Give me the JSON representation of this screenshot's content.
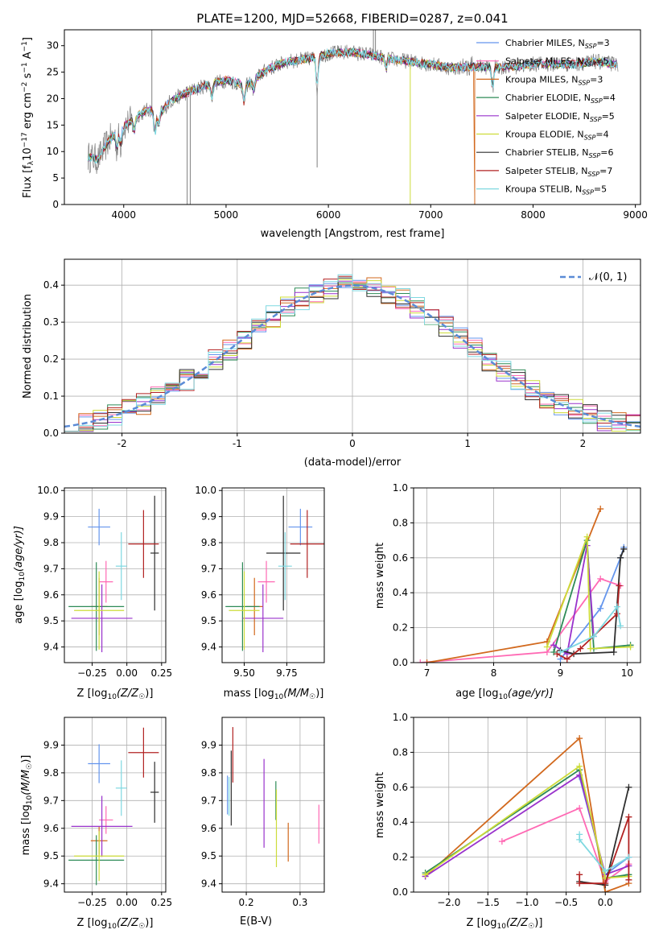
{
  "chart_data": [
    {
      "id": "spectrum",
      "type": "line",
      "title": "PLATE=1200, MJD=52668, FIBERID=0287, z=0.041",
      "xlabel": "wavelength [Angstrom, rest frame]",
      "ylabel": "Flux [f",
      "ylabel_sub": "λ",
      "ylabel_rest": "10",
      "ylabel_exp": "−17",
      "ylabel_tail": " erg cm",
      "ylabel_exp2": "−2",
      "ylabel_tail2": " s",
      "ylabel_exp3": "−1",
      "ylabel_tail3": " A",
      "ylabel_exp4": "−1",
      "ylabel_end": "]",
      "xlim": [
        3420,
        9050
      ],
      "ylim": [
        0,
        33
      ],
      "xticks": [
        4000,
        5000,
        6000,
        7000,
        8000,
        9000
      ],
      "yticks": [
        0,
        5,
        10,
        15,
        20,
        25,
        30
      ],
      "legend_loc": "upper-right",
      "series": [
        {
          "name": "Chabrier MILES, N",
          "sub": "SSP",
          "val": "=3",
          "color": "#6495ed"
        },
        {
          "name": "Salpeter MILES, N",
          "sub": "SSP",
          "val": "=5",
          "color": "#ff69b4"
        },
        {
          "name": "Kroupa MILES, N",
          "sub": "SSP",
          "val": "=3",
          "color": "#d2691e"
        },
        {
          "name": "Chabrier ELODIE, N",
          "sub": "SSP",
          "val": "=4",
          "color": "#2e8b57"
        },
        {
          "name": "Salpeter ELODIE, N",
          "sub": "SSP",
          "val": "=5",
          "color": "#9932cc"
        },
        {
          "name": "Kroupa ELODIE, N",
          "sub": "SSP",
          "val": "=4",
          "color": "#cddc39"
        },
        {
          "name": "Chabrier STELIB, N",
          "sub": "SSP",
          "val": "=6",
          "color": "#2f2f2f"
        },
        {
          "name": "Salpeter STELIB, N",
          "sub": "SSP",
          "val": "=7",
          "color": "#b22222"
        },
        {
          "name": "Kroupa STELIB, N",
          "sub": "SSP",
          "val": "=5",
          "color": "#7fd8e0"
        }
      ],
      "continuum": [
        [
          3650,
          9
        ],
        [
          3750,
          8.5
        ],
        [
          3850,
          12
        ],
        [
          3950,
          14
        ],
        [
          4050,
          15.5
        ],
        [
          4150,
          17
        ],
        [
          4250,
          18
        ],
        [
          4350,
          17
        ],
        [
          4450,
          19.5
        ],
        [
          4600,
          21
        ],
        [
          4800,
          22.5
        ],
        [
          5000,
          23.5
        ],
        [
          5200,
          22.5
        ],
        [
          5400,
          25.5
        ],
        [
          5600,
          27
        ],
        [
          5800,
          27.5
        ],
        [
          6000,
          28.5
        ],
        [
          6200,
          28.8
        ],
        [
          6400,
          28.3
        ],
        [
          6600,
          27.5
        ],
        [
          6800,
          27
        ],
        [
          7000,
          26.5
        ],
        [
          7200,
          25.8
        ],
        [
          7400,
          26
        ],
        [
          7600,
          26
        ],
        [
          7800,
          26
        ],
        [
          8000,
          26.5
        ],
        [
          8200,
          26.5
        ],
        [
          8400,
          26.5
        ],
        [
          8600,
          27
        ],
        [
          8800,
          26.5
        ]
      ]
    },
    {
      "id": "residuals",
      "type": "histogram",
      "xlabel": "(data-model)/error",
      "ylabel": "Normed distribution",
      "xlim": [
        -2.5,
        2.5
      ],
      "ylim": [
        0,
        0.47
      ],
      "xticks": [
        -2,
        -1,
        0,
        1,
        2
      ],
      "yticks": [
        0.0,
        0.1,
        0.2,
        0.3,
        0.4
      ],
      "grid": true,
      "legend_loc": "upper-right",
      "legend_label": "𝒩(0, 1)",
      "gauss_color": "#5b8bd6"
    },
    {
      "id": "age-vs-z",
      "type": "errorbar",
      "xlabel": "Z [log",
      "xlabel_sub": "10",
      "xlabel_rest": "(Z/Z",
      "xlabel_sub2": "☉",
      "xlabel_end": ")]",
      "ylabel": "age  [log",
      "ylabel_sub": "10",
      "ylabel_rest": "(age/yr)]",
      "xlim": [
        -0.45,
        0.28
      ],
      "ylim": [
        9.34,
        10.01
      ],
      "xticks": [
        -0.25,
        0.0,
        0.25
      ],
      "xticklabels": [
        "−0.25",
        "0.00",
        "0.25"
      ],
      "yticks": [
        9.4,
        9.5,
        9.6,
        9.7,
        9.8,
        9.9,
        10.0
      ],
      "points": [
        {
          "x": -0.2,
          "xerr": 0.08,
          "y": 9.86,
          "yerr": 0.07,
          "color": "#6495ed"
        },
        {
          "x": -0.15,
          "xerr": 0.05,
          "y": 9.65,
          "yerr": 0.08,
          "color": "#ff69b4"
        },
        {
          "x": -0.2,
          "xerr": 0.06,
          "y": 9.555,
          "yerr": 0.11,
          "color": "#d2691e"
        },
        {
          "x": -0.22,
          "xerr": 0.2,
          "y": 9.555,
          "yerr": 0.17,
          "color": "#2e8b57"
        },
        {
          "x": -0.18,
          "xerr": 0.22,
          "y": 9.51,
          "yerr": 0.13,
          "color": "#9932cc"
        },
        {
          "x": -0.2,
          "xerr": 0.18,
          "y": 9.54,
          "yerr": 0.15,
          "color": "#cddc39"
        },
        {
          "x": 0.2,
          "xerr": 0.03,
          "y": 9.76,
          "yerr": 0.22,
          "color": "#2f2f2f"
        },
        {
          "x": 0.12,
          "xerr": 0.11,
          "y": 9.795,
          "yerr": 0.13,
          "color": "#b22222"
        },
        {
          "x": -0.04,
          "xerr": 0.04,
          "y": 9.71,
          "yerr": 0.13,
          "color": "#7fd8e0"
        }
      ]
    },
    {
      "id": "age-vs-mass",
      "type": "errorbar",
      "xlabel": "mass [log",
      "xlabel_sub": "10",
      "xlabel_rest": "(M/M",
      "xlabel_sub2": "☉",
      "xlabel_end": ")]",
      "xlim": [
        9.37,
        9.97
      ],
      "ylim": [
        9.34,
        10.01
      ],
      "xticks": [
        9.5,
        9.75
      ],
      "xticklabels": [
        "9.50",
        "9.75"
      ],
      "yticks": [
        9.4,
        9.5,
        9.6,
        9.7,
        9.8,
        9.9,
        10.0
      ],
      "points": [
        {
          "x": 9.83,
          "xerr": 0.07,
          "y": 9.86,
          "yerr": 0.07,
          "color": "#6495ed"
        },
        {
          "x": 9.63,
          "xerr": 0.05,
          "y": 9.65,
          "yerr": 0.08,
          "color": "#ff69b4"
        },
        {
          "x": 9.56,
          "xerr": 0.05,
          "y": 9.555,
          "yerr": 0.11,
          "color": "#d2691e"
        },
        {
          "x": 9.49,
          "xerr": 0.1,
          "y": 9.555,
          "yerr": 0.17,
          "color": "#2e8b57"
        },
        {
          "x": 9.61,
          "xerr": 0.12,
          "y": 9.51,
          "yerr": 0.13,
          "color": "#9932cc"
        },
        {
          "x": 9.5,
          "xerr": 0.09,
          "y": 9.54,
          "yerr": 0.15,
          "color": "#cddc39"
        },
        {
          "x": 9.73,
          "xerr": 0.1,
          "y": 9.76,
          "yerr": 0.22,
          "color": "#2f2f2f"
        },
        {
          "x": 9.87,
          "xerr": 0.1,
          "y": 9.795,
          "yerr": 0.13,
          "color": "#b22222"
        },
        {
          "x": 9.74,
          "xerr": 0.04,
          "y": 9.71,
          "yerr": 0.13,
          "color": "#7fd8e0"
        }
      ]
    },
    {
      "id": "mass-weight-vs-age",
      "type": "line",
      "xlabel": "age  [log",
      "xlabel_sub": "10",
      "xlabel_rest": "(age/yr)]",
      "ylabel": "mass weight",
      "xlim": [
        6.8,
        10.2
      ],
      "ylim": [
        0,
        1.0
      ],
      "xticks": [
        7,
        8,
        9,
        10
      ],
      "yticks": [
        0.0,
        0.2,
        0.4,
        0.6,
        0.8,
        1.0
      ],
      "series": [
        {
          "color": "#6495ed",
          "points": [
            [
              9.0,
              0.02
            ],
            [
              9.6,
              0.31
            ],
            [
              9.9,
              0.6
            ],
            [
              9.95,
              0.66
            ]
          ]
        },
        {
          "color": "#ff69b4",
          "points": [
            [
              6.9,
              0.0
            ],
            [
              8.8,
              0.06
            ],
            [
              9.6,
              0.48
            ],
            [
              9.9,
              0.44
            ]
          ]
        },
        {
          "color": "#d2691e",
          "points": [
            [
              7.0,
              0.0
            ],
            [
              8.8,
              0.12
            ],
            [
              9.6,
              0.88
            ]
          ]
        },
        {
          "color": "#2e8b57",
          "points": [
            [
              8.9,
              0.06
            ],
            [
              9.4,
              0.7
            ],
            [
              9.5,
              0.08
            ],
            [
              10.05,
              0.1
            ]
          ]
        },
        {
          "color": "#9932cc",
          "points": [
            [
              8.9,
              0.1
            ],
            [
              9.1,
              0.05
            ],
            [
              9.4,
              0.67
            ],
            [
              9.5,
              0.15
            ]
          ]
        },
        {
          "color": "#cddc39",
          "points": [
            [
              8.8,
              0.09
            ],
            [
              9.4,
              0.72
            ],
            [
              9.45,
              0.08
            ],
            [
              10.05,
              0.09
            ]
          ]
        },
        {
          "color": "#2f2f2f",
          "points": [
            [
              9.0,
              0.07
            ],
            [
              9.2,
              0.05
            ],
            [
              9.8,
              0.06
            ],
            [
              9.9,
              0.6
            ],
            [
              9.95,
              0.65
            ]
          ]
        },
        {
          "color": "#b22222",
          "points": [
            [
              8.95,
              0.05
            ],
            [
              9.1,
              0.02
            ],
            [
              9.3,
              0.08
            ],
            [
              9.85,
              0.28
            ],
            [
              9.88,
              0.44
            ]
          ]
        },
        {
          "color": "#7fd8e0",
          "points": [
            [
              9.0,
              0.06
            ],
            [
              9.5,
              0.15
            ],
            [
              9.85,
              0.32
            ],
            [
              9.9,
              0.21
            ]
          ]
        }
      ]
    },
    {
      "id": "mass-vs-z",
      "type": "errorbar",
      "xlabel": "Z [log",
      "xlabel_sub": "10",
      "xlabel_rest": "(Z/Z",
      "xlabel_sub2": "☉",
      "xlabel_end": ")]",
      "ylabel": "mass [log",
      "ylabel_sub": "10",
      "ylabel_rest": "(M/M",
      "ylabel_sub2": "☉",
      "ylabel_end": ")]",
      "xlim": [
        -0.45,
        0.28
      ],
      "ylim": [
        9.37,
        10.0
      ],
      "xticks": [
        -0.25,
        0.0,
        0.25
      ],
      "xticklabels": [
        "−0.25",
        "0.00",
        "0.25"
      ],
      "yticks": [
        9.4,
        9.5,
        9.6,
        9.7,
        9.8,
        9.9
      ],
      "points": [
        {
          "x": -0.2,
          "xerr": 0.08,
          "y": 9.833,
          "yerr": 0.07,
          "color": "#6495ed"
        },
        {
          "x": -0.15,
          "xerr": 0.05,
          "y": 9.63,
          "yerr": 0.05,
          "color": "#ff69b4"
        },
        {
          "x": -0.2,
          "xerr": 0.06,
          "y": 9.555,
          "yerr": 0.05,
          "color": "#d2691e"
        },
        {
          "x": -0.22,
          "xerr": 0.2,
          "y": 9.485,
          "yerr": 0.09,
          "color": "#2e8b57"
        },
        {
          "x": -0.18,
          "xerr": 0.22,
          "y": 9.607,
          "yerr": 0.11,
          "color": "#9932cc"
        },
        {
          "x": -0.2,
          "xerr": 0.18,
          "y": 9.5,
          "yerr": 0.09,
          "color": "#cddc39"
        },
        {
          "x": 0.2,
          "xerr": 0.03,
          "y": 9.73,
          "yerr": 0.11,
          "color": "#2f2f2f"
        },
        {
          "x": 0.12,
          "xerr": 0.11,
          "y": 9.873,
          "yerr": 0.09,
          "color": "#b22222"
        },
        {
          "x": -0.04,
          "xerr": 0.04,
          "y": 9.745,
          "yerr": 0.1,
          "color": "#7fd8e0"
        }
      ]
    },
    {
      "id": "ebv",
      "type": "errorbar",
      "xlabel": "E(B-V)",
      "xlim": [
        0.155,
        0.345
      ],
      "ylim": [
        9.37,
        10.0
      ],
      "xticks": [
        0.2,
        0.3
      ],
      "xticklabels": [
        "0.2",
        "0.3"
      ],
      "yticks": [
        9.4,
        9.5,
        9.6,
        9.7,
        9.8,
        9.9
      ],
      "points": [
        {
          "x": 0.165,
          "y": 9.72,
          "yerr": 0.07,
          "color": "#6495ed"
        },
        {
          "x": 0.335,
          "y": 9.615,
          "yerr": 0.07,
          "color": "#ff69b4"
        },
        {
          "x": 0.278,
          "y": 9.55,
          "yerr": 0.07,
          "color": "#d2691e"
        },
        {
          "x": 0.255,
          "y": 9.7,
          "yerr": 0.07,
          "color": "#2e8b57"
        },
        {
          "x": 0.233,
          "y": 9.69,
          "yerr": 0.16,
          "color": "#9932cc"
        },
        {
          "x": 0.256,
          "y": 9.6,
          "yerr": 0.14,
          "color": "#cddc39"
        },
        {
          "x": 0.172,
          "y": 9.745,
          "yerr": 0.135,
          "color": "#2f2f2f"
        },
        {
          "x": 0.175,
          "y": 9.865,
          "yerr": 0.1,
          "color": "#b22222"
        },
        {
          "x": 0.168,
          "y": 9.715,
          "yerr": 0.07,
          "color": "#7fd8e0"
        }
      ]
    },
    {
      "id": "mass-weight-vs-z",
      "type": "line",
      "xlabel": "Z [log",
      "xlabel_sub": "10",
      "xlabel_rest": "(Z/Z",
      "xlabel_sub2": "☉",
      "xlabel_end": ")]",
      "ylabel": "mass weight",
      "xlim": [
        -2.45,
        0.45
      ],
      "ylim": [
        0,
        1.0
      ],
      "xticks": [
        -2.0,
        -1.5,
        -1.0,
        -0.5,
        0.0
      ],
      "xticklabels": [
        "−2.0",
        "−1.5",
        "−1.0",
        "−0.5",
        "0.0"
      ],
      "yticks": [
        0.0,
        0.2,
        0.4,
        0.6,
        0.8,
        1.0
      ],
      "series": [
        {
          "color": "#6495ed",
          "points": [
            [
              -0.33,
              0.66
            ],
            [
              0.0,
              0.1
            ],
            [
              0.3,
              0.2
            ]
          ]
        },
        {
          "color": "#ff69b4",
          "points": [
            [
              -1.32,
              0.29
            ],
            [
              -0.33,
              0.48
            ],
            [
              0.0,
              0.06
            ],
            [
              0.3,
              0.16
            ]
          ]
        },
        {
          "color": "#d2691e",
          "points": [
            [
              -2.3,
              0.09
            ],
            [
              -0.33,
              0.88
            ],
            [
              0.0,
              0.0
            ],
            [
              0.3,
              0.05
            ]
          ]
        },
        {
          "color": "#2e8b57",
          "points": [
            [
              -2.3,
              0.11
            ],
            [
              -0.33,
              0.7
            ],
            [
              0.0,
              0.08
            ],
            [
              0.3,
              0.1
            ]
          ]
        },
        {
          "color": "#9932cc",
          "points": [
            [
              -2.3,
              0.09
            ],
            [
              -0.33,
              0.67
            ],
            [
              0.0,
              0.1
            ],
            [
              0.3,
              0.15
            ]
          ]
        },
        {
          "color": "#cddc39",
          "points": [
            [
              -2.3,
              0.1
            ],
            [
              -0.33,
              0.72
            ],
            [
              0.0,
              0.08
            ],
            [
              0.3,
              0.09
            ]
          ]
        },
        {
          "color": "#2f2f2f",
          "points": [
            [
              -0.33,
              0.06
            ],
            [
              0.0,
              0.04
            ],
            [
              0.3,
              0.6
            ]
          ]
        },
        {
          "color": "#b22222",
          "points": [
            [
              -0.33,
              0.1
            ],
            [
              -0.33,
              0.05
            ],
            [
              0.0,
              0.05
            ],
            [
              0.3,
              0.43
            ],
            [
              0.3,
              0.07
            ]
          ]
        },
        {
          "color": "#7fd8e0",
          "points": [
            [
              -0.33,
              0.33
            ],
            [
              -0.33,
              0.3
            ],
            [
              0.0,
              0.12
            ],
            [
              0.3,
              0.2
            ]
          ]
        }
      ]
    }
  ]
}
